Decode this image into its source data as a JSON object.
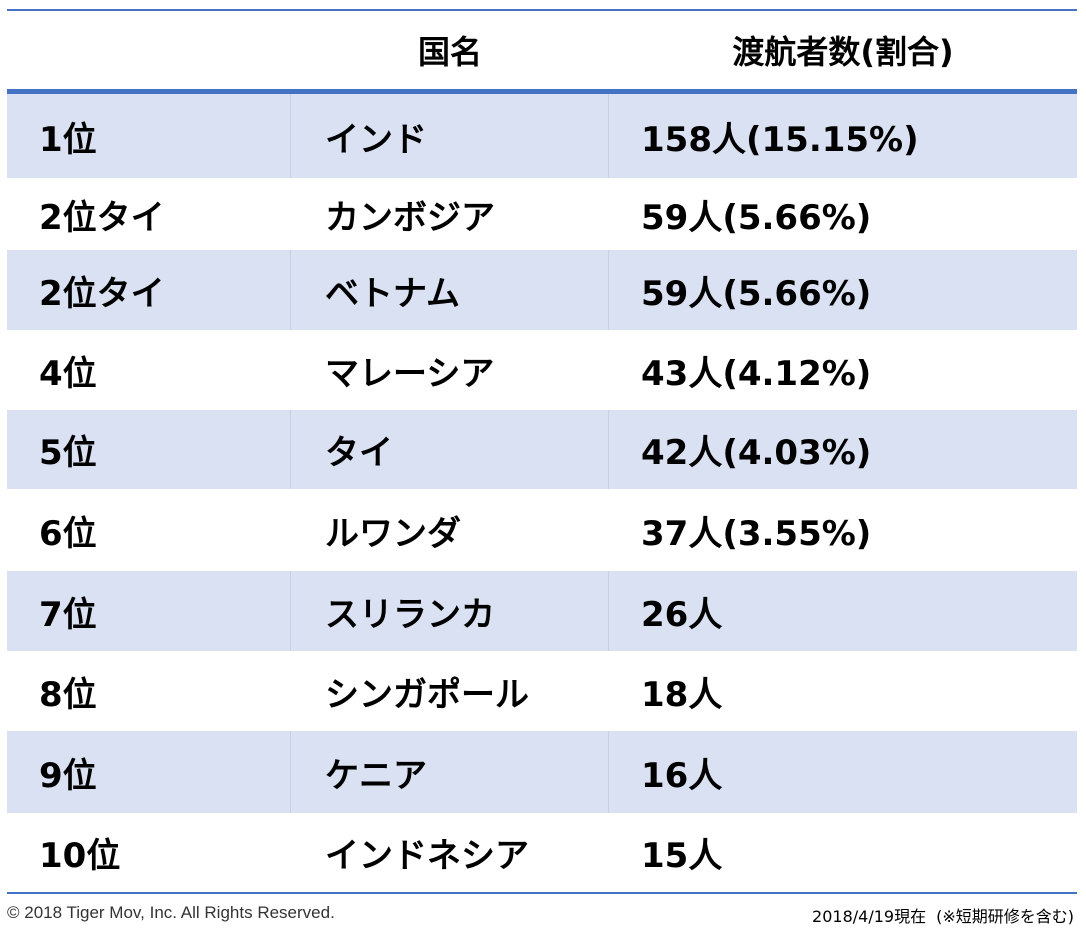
{
  "header": {
    "country_label": "国名",
    "travel_label": "渡航者数(割合)"
  },
  "rows": [
    {
      "rank": "1位",
      "country": "インド",
      "travelers": "158人(15.15%)"
    },
    {
      "rank": "2位タイ",
      "country": "カンボジア",
      "travelers": "59人(5.66%)"
    },
    {
      "rank": "2位タイ",
      "country": "ベトナム",
      "travelers": "59人(5.66%)"
    },
    {
      "rank": "4位",
      "country": "マレーシア",
      "travelers": "43人(4.12%)"
    },
    {
      "rank": "5位",
      "country": "タイ",
      "travelers": "42人(4.03%)"
    },
    {
      "rank": "6位",
      "country": "ルワンダ",
      "travelers": "37人(3.55%)"
    },
    {
      "rank": "7位",
      "country": "スリランカ",
      "travelers": "26人"
    },
    {
      "rank": "8位",
      "country": "シンガポール",
      "travelers": "18人"
    },
    {
      "rank": "9位",
      "country": "ケニア",
      "travelers": "16人"
    },
    {
      "rank": "10位",
      "country": "インドネシア",
      "travelers": "15人"
    }
  ],
  "footer": {
    "copyright": "© 2018 Tiger Mov, Inc. All Rights Reserved.",
    "date": "2018/4/19現在",
    "note": "(※短期研修を含む)"
  },
  "colors": {
    "accent_rule": "#4472c4",
    "band": "#d9e1f2"
  }
}
